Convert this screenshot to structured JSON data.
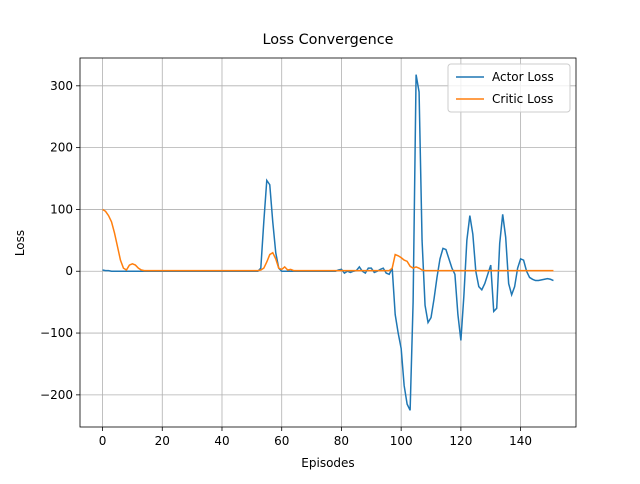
{
  "chart_data": {
    "type": "line",
    "title": "Loss Convergence",
    "x_label": "Episodes",
    "y_label": "Loss",
    "x": [
      0,
      1,
      2,
      3,
      4,
      5,
      6,
      7,
      8,
      9,
      10,
      11,
      12,
      13,
      14,
      15,
      16,
      17,
      18,
      19,
      20,
      21,
      22,
      23,
      24,
      25,
      26,
      27,
      28,
      29,
      30,
      31,
      32,
      33,
      34,
      35,
      36,
      37,
      38,
      39,
      40,
      41,
      42,
      43,
      44,
      45,
      46,
      47,
      48,
      49,
      50,
      51,
      52,
      53,
      54,
      55,
      56,
      57,
      58,
      59,
      60,
      61,
      62,
      63,
      64,
      65,
      66,
      67,
      68,
      69,
      70,
      71,
      72,
      73,
      74,
      75,
      76,
      77,
      78,
      79,
      80,
      81,
      82,
      83,
      84,
      85,
      86,
      87,
      88,
      89,
      90,
      91,
      92,
      93,
      94,
      95,
      96,
      97,
      98,
      99,
      100,
      101,
      102,
      103,
      104,
      105,
      106,
      107,
      108,
      109,
      110,
      111,
      112,
      113,
      114,
      115,
      116,
      117,
      118,
      119,
      120,
      121,
      122,
      123,
      124,
      125,
      126,
      127,
      128,
      129,
      130,
      131,
      132,
      133,
      134,
      135,
      136,
      137,
      138,
      139,
      140,
      141,
      142,
      143,
      144,
      145,
      146,
      147,
      148,
      149,
      150,
      151
    ],
    "series": [
      {
        "name": "Actor Loss",
        "color": "#1f77b4",
        "values": [
          2,
          1,
          1,
          0,
          0,
          0,
          0,
          0,
          0,
          0,
          0,
          0,
          0,
          0,
          0,
          0,
          0,
          0,
          0,
          0,
          0,
          0,
          0,
          0,
          0,
          0,
          0,
          0,
          0,
          0,
          0,
          0,
          0,
          0,
          0,
          0,
          0,
          0,
          0,
          0,
          0,
          0,
          0,
          0,
          0,
          0,
          0,
          0,
          0,
          0,
          0,
          0,
          0,
          5,
          80,
          147,
          140,
          80,
          30,
          5,
          0,
          0,
          0,
          0,
          0,
          0,
          0,
          0,
          0,
          0,
          0,
          0,
          0,
          0,
          0,
          0,
          0,
          0,
          0,
          2,
          3,
          -3,
          0,
          -2,
          0,
          1,
          7,
          0,
          -3,
          5,
          5,
          -2,
          0,
          3,
          5,
          -3,
          -5,
          5,
          -70,
          -100,
          -125,
          -185,
          -215,
          -225,
          -50,
          318,
          290,
          50,
          -55,
          -83,
          -75,
          -45,
          -10,
          20,
          37,
          35,
          20,
          5,
          -5,
          -70,
          -112,
          -40,
          50,
          90,
          60,
          0,
          -25,
          -30,
          -20,
          -5,
          10,
          -65,
          -60,
          45,
          92,
          55,
          -20,
          -38,
          -25,
          5,
          20,
          18,
          0,
          -10,
          -13,
          -15,
          -15,
          -14,
          -13,
          -12,
          -13,
          -15
        ]
      },
      {
        "name": "Critic Loss",
        "color": "#ff7f0e",
        "values": [
          100,
          97,
          90,
          80,
          62,
          40,
          18,
          5,
          2,
          10,
          12,
          10,
          5,
          2,
          1,
          1,
          1,
          1,
          1,
          1,
          1,
          1,
          1,
          1,
          1,
          1,
          1,
          1,
          1,
          1,
          1,
          1,
          1,
          1,
          1,
          1,
          1,
          1,
          1,
          1,
          1,
          1,
          1,
          1,
          1,
          1,
          1,
          1,
          1,
          1,
          1,
          1,
          1,
          2,
          5,
          15,
          27,
          30,
          20,
          5,
          3,
          7,
          2,
          3,
          1,
          1,
          1,
          1,
          1,
          1,
          1,
          1,
          1,
          1,
          1,
          1,
          1,
          1,
          1,
          1,
          1,
          1,
          1,
          1,
          1,
          1,
          1,
          1,
          1,
          1,
          1,
          1,
          1,
          1,
          1,
          1,
          1,
          5,
          27,
          25,
          22,
          18,
          16,
          8,
          5,
          7,
          5,
          2,
          1,
          1,
          1,
          1,
          1,
          1,
          1,
          1,
          1,
          1,
          1,
          1,
          1,
          1,
          1,
          1,
          1,
          1,
          1,
          1,
          1,
          1,
          1,
          1,
          1,
          1,
          1,
          1,
          1,
          1,
          1,
          1,
          1,
          1,
          1,
          1,
          1,
          1,
          1,
          1,
          1,
          1,
          1,
          1
        ]
      }
    ],
    "xlim": [
      -7.55,
      158.55
    ],
    "ylim": [
      -252,
      345
    ],
    "xticks": [
      0,
      20,
      40,
      60,
      80,
      100,
      120,
      140
    ],
    "yticks": [
      {
        "value": -200,
        "label": "−200"
      },
      {
        "value": -100,
        "label": "−100"
      },
      0,
      100,
      200,
      300
    ],
    "grid": true,
    "legend": "upper right"
  }
}
